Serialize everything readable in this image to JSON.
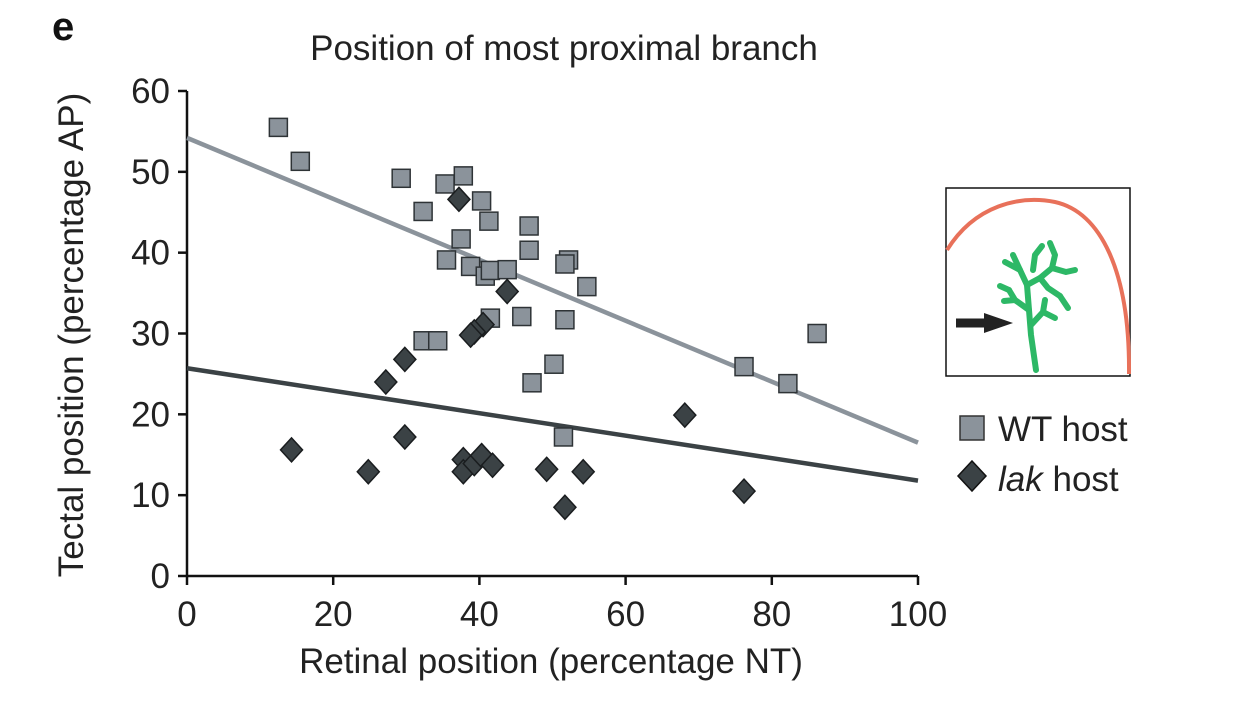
{
  "panel_label": "e",
  "chart_data": {
    "type": "scatter",
    "title": "Position of most proximal branch",
    "xlabel": "Retinal position (percentage NT)",
    "ylabel": "Tectal position (percentage AP)",
    "xlim": [
      0,
      100
    ],
    "ylim": [
      0,
      60
    ],
    "xticks": [
      0,
      20,
      40,
      60,
      80,
      100
    ],
    "yticks": [
      0,
      10,
      20,
      30,
      40,
      50,
      60
    ],
    "legend_position": "right",
    "series": [
      {
        "name": "WT host",
        "marker": "square",
        "color": "#8b939b",
        "points": [
          [
            12.5,
            55.5
          ],
          [
            15.5,
            51.3
          ],
          [
            29.3,
            49.2
          ],
          [
            32.3,
            45.1
          ],
          [
            35.3,
            48.5
          ],
          [
            37.8,
            49.5
          ],
          [
            40.3,
            46.4
          ],
          [
            41.3,
            43.9
          ],
          [
            37.5,
            41.7
          ],
          [
            35.5,
            39.1
          ],
          [
            38.8,
            38.3
          ],
          [
            40.8,
            37.1
          ],
          [
            41.5,
            37.8
          ],
          [
            43.8,
            37.9
          ],
          [
            46.8,
            43.3
          ],
          [
            46.8,
            40.3
          ],
          [
            52.2,
            39.1
          ],
          [
            51.7,
            38.6
          ],
          [
            54.7,
            35.8
          ],
          [
            32.3,
            29.1
          ],
          [
            34.3,
            29.1
          ],
          [
            41.5,
            31.9
          ],
          [
            45.8,
            32.1
          ],
          [
            51.7,
            31.7
          ],
          [
            50.2,
            26.2
          ],
          [
            47.2,
            23.9
          ],
          [
            51.5,
            17.2
          ],
          [
            76.2,
            25.9
          ],
          [
            82.2,
            23.8
          ],
          [
            86.2,
            30.0
          ]
        ],
        "trendline": [
          [
            0,
            54.2
          ],
          [
            100,
            16.5
          ]
        ]
      },
      {
        "name": "lak host",
        "marker": "diamond",
        "color": "#3b4245",
        "points": [
          [
            37.2,
            46.6
          ],
          [
            43.8,
            35.2
          ],
          [
            40.5,
            31.1
          ],
          [
            39.3,
            30.2
          ],
          [
            38.8,
            29.8
          ],
          [
            29.8,
            26.8
          ],
          [
            27.2,
            24.0
          ],
          [
            14.3,
            15.6
          ],
          [
            29.8,
            17.2
          ],
          [
            24.8,
            12.9
          ],
          [
            37.8,
            14.4
          ],
          [
            37.8,
            12.9
          ],
          [
            39.3,
            13.9
          ],
          [
            40.3,
            14.9
          ],
          [
            41.8,
            13.7
          ],
          [
            49.2,
            13.2
          ],
          [
            54.2,
            12.9
          ],
          [
            51.7,
            8.5
          ],
          [
            68.1,
            19.9
          ],
          [
            76.2,
            10.5
          ]
        ],
        "trendline": [
          [
            0,
            25.7
          ],
          [
            100,
            11.8
          ]
        ]
      }
    ]
  },
  "inset": {
    "arc_color": "#e8715a",
    "branch_color": "#2db866",
    "arrow_color": "#222222",
    "icons": [
      "tectum-arc",
      "axon-branch",
      "arrow-pointer"
    ]
  }
}
